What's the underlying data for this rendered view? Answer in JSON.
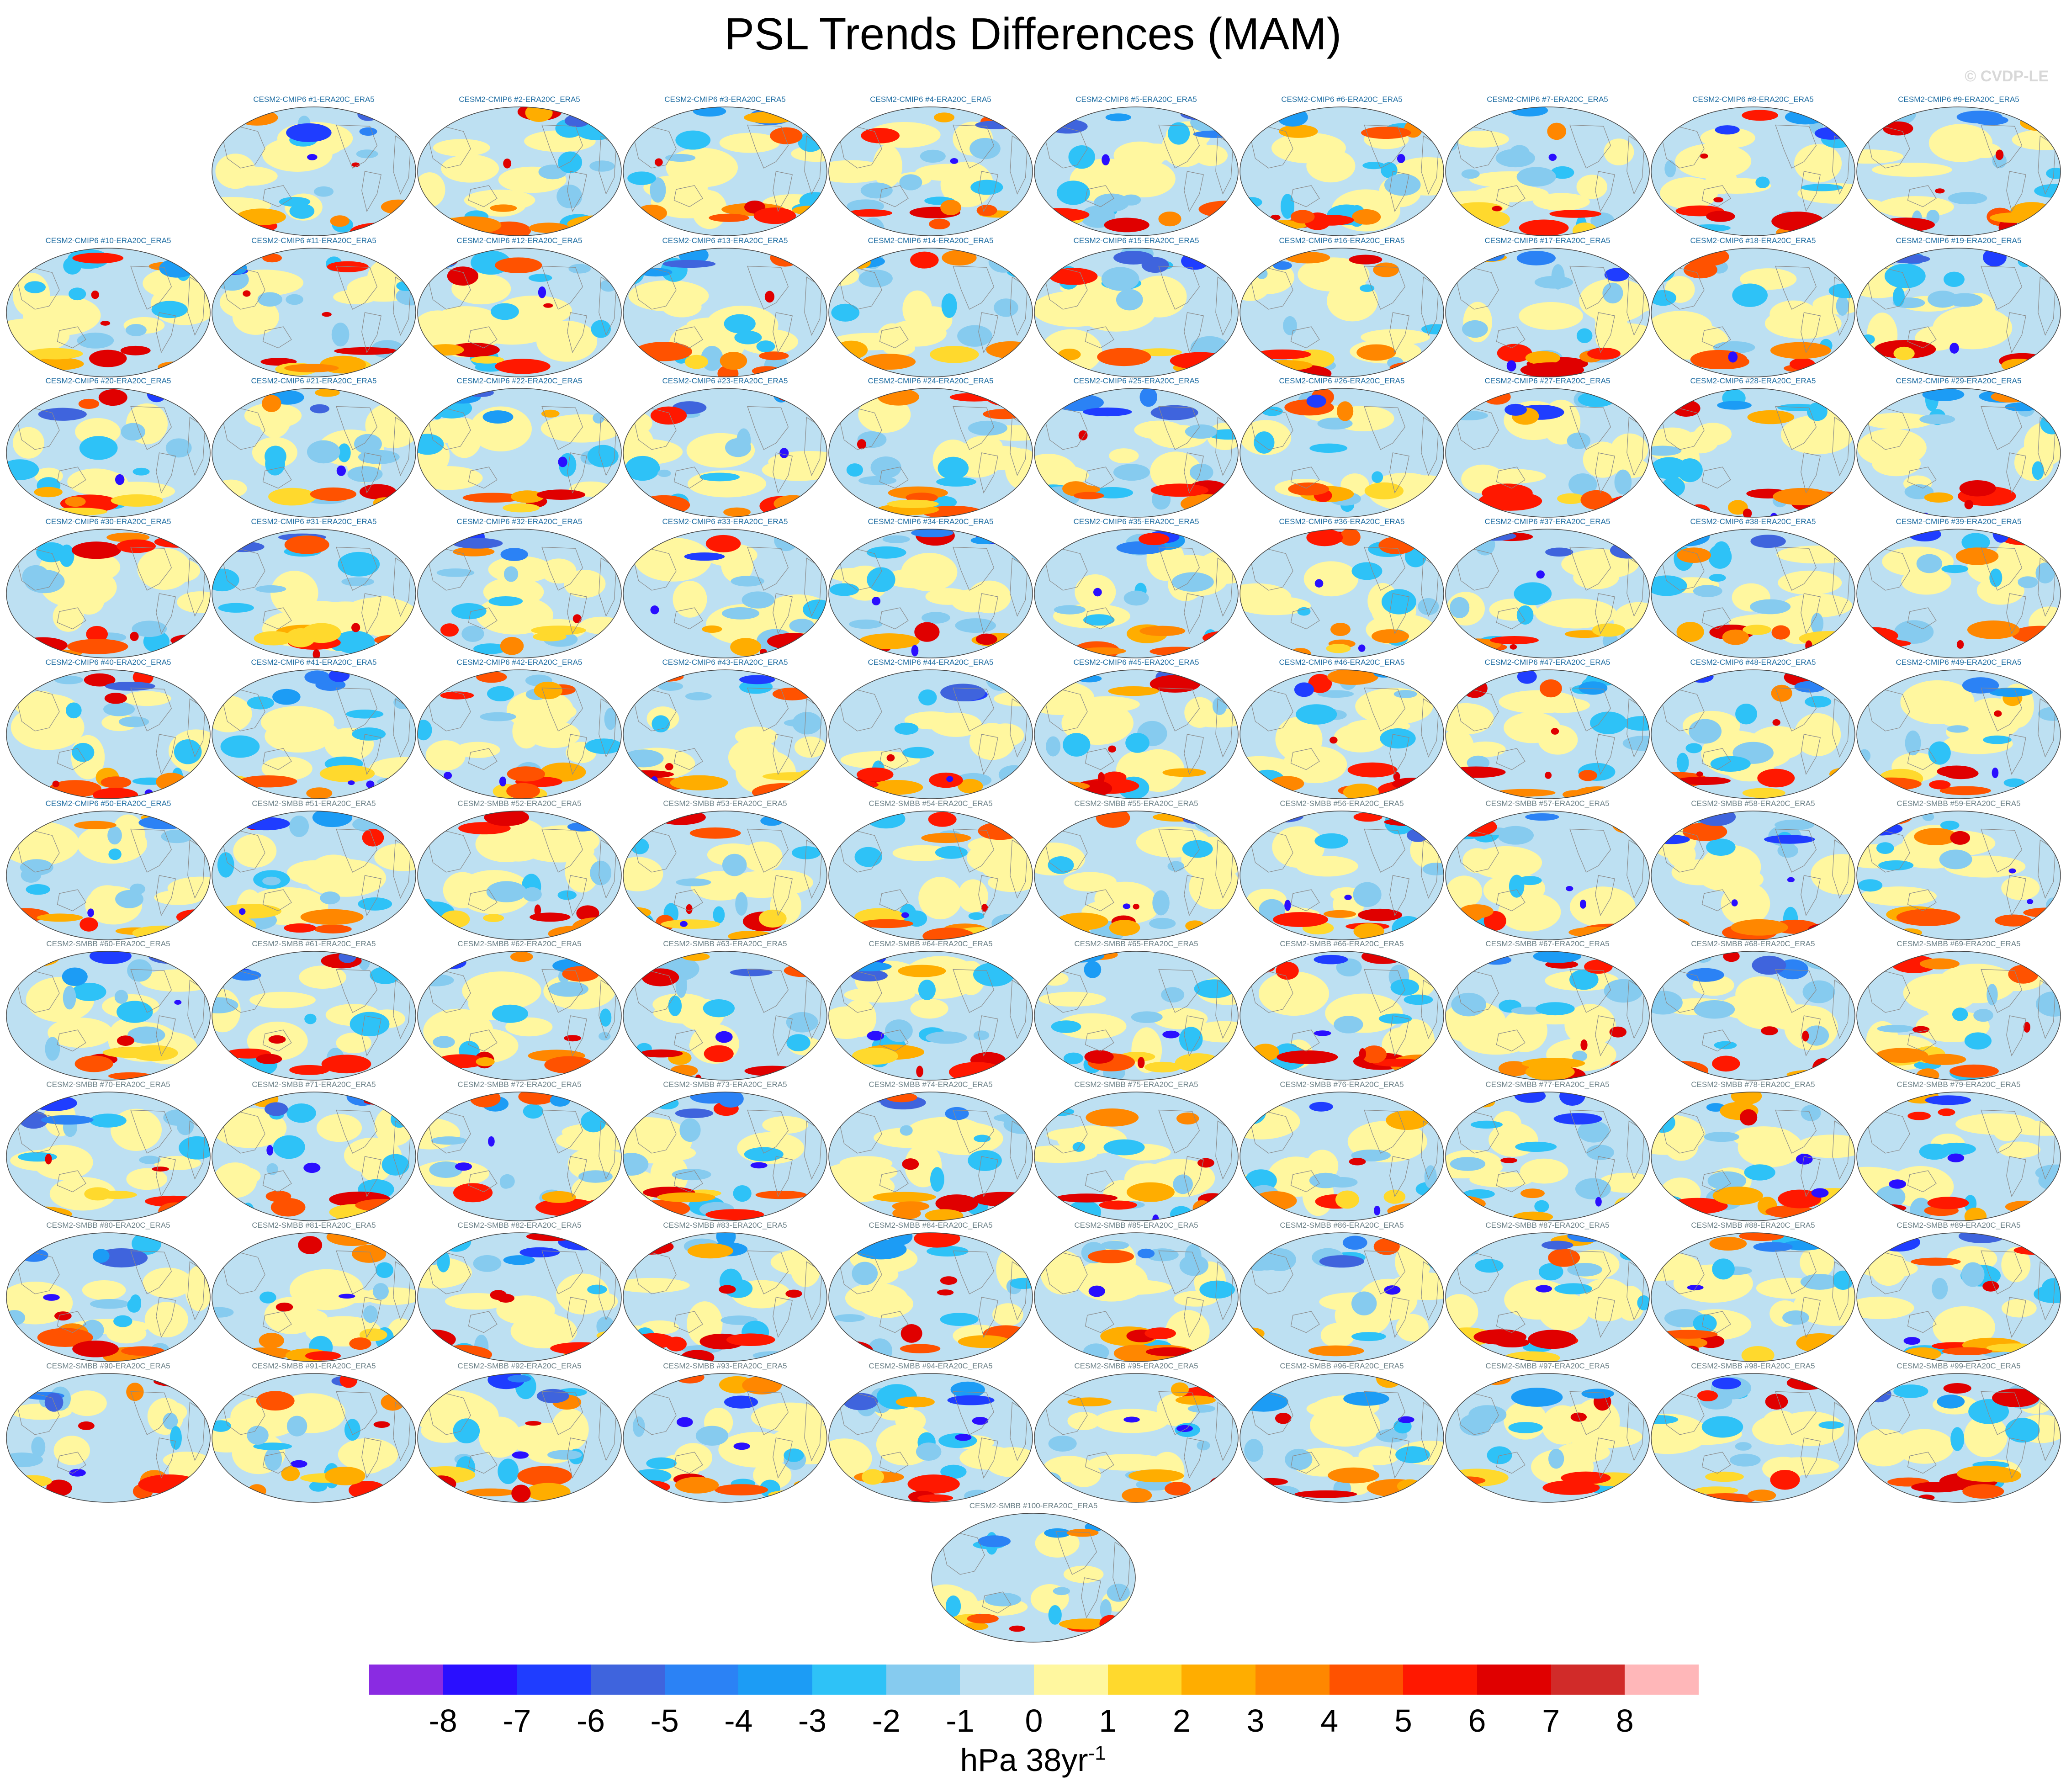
{
  "title": "PSL Trends Differences (MAM)",
  "copyright": "© CVDP-LE",
  "colorbar": {
    "units_base": "hPa 38yr",
    "units_exponent": "-1",
    "tick_labels": [
      "-8",
      "-7",
      "-6",
      "-5",
      "-4",
      "-3",
      "-2",
      "-1",
      "0",
      "1",
      "2",
      "3",
      "4",
      "5",
      "6",
      "7",
      "8"
    ],
    "colors": [
      "#8a2be2",
      "#2a0fff",
      "#1f3dff",
      "#3f64dd",
      "#2b82f5",
      "#1c9cf5",
      "#2ec2f7",
      "#86cbef",
      "#bde0f2",
      "#fff79f",
      "#ffd92d",
      "#ffad00",
      "#ff8700",
      "#ff5200",
      "#ff1800",
      "#e00000",
      "#d12b29",
      "#ffb7b9"
    ]
  },
  "chart_data": {
    "type": "heatmap",
    "description_text": "",
    "variable": "PSL",
    "season": "MAM",
    "projection": "global map (Robinson-like)",
    "units": "hPa 38yr-1",
    "value_range": [
      -8,
      8
    ],
    "levels": [
      -8,
      -7,
      -6,
      -5,
      -4,
      -3,
      -2,
      -1,
      0,
      1,
      2,
      3,
      4,
      5,
      6,
      7,
      8
    ],
    "panels": [
      {
        "label": "CESM2-CMIP6 #1-ERA20C_ERA5",
        "group": "cmip6"
      },
      {
        "label": "CESM2-CMIP6 #2-ERA20C_ERA5",
        "group": "cmip6"
      },
      {
        "label": "CESM2-CMIP6 #3-ERA20C_ERA5",
        "group": "cmip6"
      },
      {
        "label": "CESM2-CMIP6 #4-ERA20C_ERA5",
        "group": "cmip6"
      },
      {
        "label": "CESM2-CMIP6 #5-ERA20C_ERA5",
        "group": "cmip6"
      },
      {
        "label": "CESM2-CMIP6 #6-ERA20C_ERA5",
        "group": "cmip6"
      },
      {
        "label": "CESM2-CMIP6 #7-ERA20C_ERA5",
        "group": "cmip6"
      },
      {
        "label": "CESM2-CMIP6 #8-ERA20C_ERA5",
        "group": "cmip6"
      },
      {
        "label": "CESM2-CMIP6 #9-ERA20C_ERA5",
        "group": "cmip6"
      },
      {
        "label": "CESM2-CMIP6 #10-ERA20C_ERA5",
        "group": "cmip6"
      },
      {
        "label": "CESM2-CMIP6 #11-ERA20C_ERA5",
        "group": "cmip6"
      },
      {
        "label": "CESM2-CMIP6 #12-ERA20C_ERA5",
        "group": "cmip6"
      },
      {
        "label": "CESM2-CMIP6 #13-ERA20C_ERA5",
        "group": "cmip6"
      },
      {
        "label": "CESM2-CMIP6 #14-ERA20C_ERA5",
        "group": "cmip6"
      },
      {
        "label": "CESM2-CMIP6 #15-ERA20C_ERA5",
        "group": "cmip6"
      },
      {
        "label": "CESM2-CMIP6 #16-ERA20C_ERA5",
        "group": "cmip6"
      },
      {
        "label": "CESM2-CMIP6 #17-ERA20C_ERA5",
        "group": "cmip6"
      },
      {
        "label": "CESM2-CMIP6 #18-ERA20C_ERA5",
        "group": "cmip6"
      },
      {
        "label": "CESM2-CMIP6 #19-ERA20C_ERA5",
        "group": "cmip6"
      },
      {
        "label": "CESM2-CMIP6 #20-ERA20C_ERA5",
        "group": "cmip6"
      },
      {
        "label": "CESM2-CMIP6 #21-ERA20C_ERA5",
        "group": "cmip6"
      },
      {
        "label": "CESM2-CMIP6 #22-ERA20C_ERA5",
        "group": "cmip6"
      },
      {
        "label": "CESM2-CMIP6 #23-ERA20C_ERA5",
        "group": "cmip6"
      },
      {
        "label": "CESM2-CMIP6 #24-ERA20C_ERA5",
        "group": "cmip6"
      },
      {
        "label": "CESM2-CMIP6 #25-ERA20C_ERA5",
        "group": "cmip6"
      },
      {
        "label": "CESM2-CMIP6 #26-ERA20C_ERA5",
        "group": "cmip6"
      },
      {
        "label": "CESM2-CMIP6 #27-ERA20C_ERA5",
        "group": "cmip6"
      },
      {
        "label": "CESM2-CMIP6 #28-ERA20C_ERA5",
        "group": "cmip6"
      },
      {
        "label": "CESM2-CMIP6 #29-ERA20C_ERA5",
        "group": "cmip6"
      },
      {
        "label": "CESM2-CMIP6 #30-ERA20C_ERA5",
        "group": "cmip6"
      },
      {
        "label": "CESM2-CMIP6 #31-ERA20C_ERA5",
        "group": "cmip6"
      },
      {
        "label": "CESM2-CMIP6 #32-ERA20C_ERA5",
        "group": "cmip6"
      },
      {
        "label": "CESM2-CMIP6 #33-ERA20C_ERA5",
        "group": "cmip6"
      },
      {
        "label": "CESM2-CMIP6 #34-ERA20C_ERA5",
        "group": "cmip6"
      },
      {
        "label": "CESM2-CMIP6 #35-ERA20C_ERA5",
        "group": "cmip6"
      },
      {
        "label": "CESM2-CMIP6 #36-ERA20C_ERA5",
        "group": "cmip6"
      },
      {
        "label": "CESM2-CMIP6 #37-ERA20C_ERA5",
        "group": "cmip6"
      },
      {
        "label": "CESM2-CMIP6 #38-ERA20C_ERA5",
        "group": "cmip6"
      },
      {
        "label": "CESM2-CMIP6 #39-ERA20C_ERA5",
        "group": "cmip6"
      },
      {
        "label": "CESM2-CMIP6 #40-ERA20C_ERA5",
        "group": "cmip6"
      },
      {
        "label": "CESM2-CMIP6 #41-ERA20C_ERA5",
        "group": "cmip6"
      },
      {
        "label": "CESM2-CMIP6 #42-ERA20C_ERA5",
        "group": "cmip6"
      },
      {
        "label": "CESM2-CMIP6 #43-ERA20C_ERA5",
        "group": "cmip6"
      },
      {
        "label": "CESM2-CMIP6 #44-ERA20C_ERA5",
        "group": "cmip6"
      },
      {
        "label": "CESM2-CMIP6 #45-ERA20C_ERA5",
        "group": "cmip6"
      },
      {
        "label": "CESM2-CMIP6 #46-ERA20C_ERA5",
        "group": "cmip6"
      },
      {
        "label": "CESM2-CMIP6 #47-ERA20C_ERA5",
        "group": "cmip6"
      },
      {
        "label": "CESM2-CMIP6 #48-ERA20C_ERA5",
        "group": "cmip6"
      },
      {
        "label": "CESM2-CMIP6 #49-ERA20C_ERA5",
        "group": "cmip6"
      },
      {
        "label": "CESM2-CMIP6 #50-ERA20C_ERA5",
        "group": "cmip6"
      },
      {
        "label": "CESM2-SMBB #51-ERA20C_ERA5",
        "group": "smbb"
      },
      {
        "label": "CESM2-SMBB #52-ERA20C_ERA5",
        "group": "smbb"
      },
      {
        "label": "CESM2-SMBB #53-ERA20C_ERA5",
        "group": "smbb"
      },
      {
        "label": "CESM2-SMBB #54-ERA20C_ERA5",
        "group": "smbb"
      },
      {
        "label": "CESM2-SMBB #55-ERA20C_ERA5",
        "group": "smbb"
      },
      {
        "label": "CESM2-SMBB #56-ERA20C_ERA5",
        "group": "smbb"
      },
      {
        "label": "CESM2-SMBB #57-ERA20C_ERA5",
        "group": "smbb"
      },
      {
        "label": "CESM2-SMBB #58-ERA20C_ERA5",
        "group": "smbb"
      },
      {
        "label": "CESM2-SMBB #59-ERA20C_ERA5",
        "group": "smbb"
      },
      {
        "label": "CESM2-SMBB #60-ERA20C_ERA5",
        "group": "smbb"
      },
      {
        "label": "CESM2-SMBB #61-ERA20C_ERA5",
        "group": "smbb"
      },
      {
        "label": "CESM2-SMBB #62-ERA20C_ERA5",
        "group": "smbb"
      },
      {
        "label": "CESM2-SMBB #63-ERA20C_ERA5",
        "group": "smbb"
      },
      {
        "label": "CESM2-SMBB #64-ERA20C_ERA5",
        "group": "smbb"
      },
      {
        "label": "CESM2-SMBB #65-ERA20C_ERA5",
        "group": "smbb"
      },
      {
        "label": "CESM2-SMBB #66-ERA20C_ERA5",
        "group": "smbb"
      },
      {
        "label": "CESM2-SMBB #67-ERA20C_ERA5",
        "group": "smbb"
      },
      {
        "label": "CESM2-SMBB #68-ERA20C_ERA5",
        "group": "smbb"
      },
      {
        "label": "CESM2-SMBB #69-ERA20C_ERA5",
        "group": "smbb"
      },
      {
        "label": "CESM2-SMBB #70-ERA20C_ERA5",
        "group": "smbb"
      },
      {
        "label": "CESM2-SMBB #71-ERA20C_ERA5",
        "group": "smbb"
      },
      {
        "label": "CESM2-SMBB #72-ERA20C_ERA5",
        "group": "smbb"
      },
      {
        "label": "CESM2-SMBB #73-ERA20C_ERA5",
        "group": "smbb"
      },
      {
        "label": "CESM2-SMBB #74-ERA20C_ERA5",
        "group": "smbb"
      },
      {
        "label": "CESM2-SMBB #75-ERA20C_ERA5",
        "group": "smbb"
      },
      {
        "label": "CESM2-SMBB #76-ERA20C_ERA5",
        "group": "smbb"
      },
      {
        "label": "CESM2-SMBB #77-ERA20C_ERA5",
        "group": "smbb"
      },
      {
        "label": "CESM2-SMBB #78-ERA20C_ERA5",
        "group": "smbb"
      },
      {
        "label": "CESM2-SMBB #79-ERA20C_ERA5",
        "group": "smbb"
      },
      {
        "label": "CESM2-SMBB #80-ERA20C_ERA5",
        "group": "smbb"
      },
      {
        "label": "CESM2-SMBB #81-ERA20C_ERA5",
        "group": "smbb"
      },
      {
        "label": "CESM2-SMBB #82-ERA20C_ERA5",
        "group": "smbb"
      },
      {
        "label": "CESM2-SMBB #83-ERA20C_ERA5",
        "group": "smbb"
      },
      {
        "label": "CESM2-SMBB #84-ERA20C_ERA5",
        "group": "smbb"
      },
      {
        "label": "CESM2-SMBB #85-ERA20C_ERA5",
        "group": "smbb"
      },
      {
        "label": "CESM2-SMBB #86-ERA20C_ERA5",
        "group": "smbb"
      },
      {
        "label": "CESM2-SMBB #87-ERA20C_ERA5",
        "group": "smbb"
      },
      {
        "label": "CESM2-SMBB #88-ERA20C_ERA5",
        "group": "smbb"
      },
      {
        "label": "CESM2-SMBB #89-ERA20C_ERA5",
        "group": "smbb"
      },
      {
        "label": "CESM2-SMBB #90-ERA20C_ERA5",
        "group": "smbb"
      },
      {
        "label": "CESM2-SMBB #91-ERA20C_ERA5",
        "group": "smbb"
      },
      {
        "label": "CESM2-SMBB #92-ERA20C_ERA5",
        "group": "smbb"
      },
      {
        "label": "CESM2-SMBB #93-ERA20C_ERA5",
        "group": "smbb"
      },
      {
        "label": "CESM2-SMBB #94-ERA20C_ERA5",
        "group": "smbb"
      },
      {
        "label": "CESM2-SMBB #95-ERA20C_ERA5",
        "group": "smbb"
      },
      {
        "label": "CESM2-SMBB #96-ERA20C_ERA5",
        "group": "smbb"
      },
      {
        "label": "CESM2-SMBB #97-ERA20C_ERA5",
        "group": "smbb"
      },
      {
        "label": "CESM2-SMBB #98-ERA20C_ERA5",
        "group": "smbb"
      },
      {
        "label": "CESM2-SMBB #99-ERA20C_ERA5",
        "group": "smbb"
      },
      {
        "label": "CESM2-SMBB #100-ERA20C_ERA5",
        "group": "smbb"
      }
    ]
  }
}
